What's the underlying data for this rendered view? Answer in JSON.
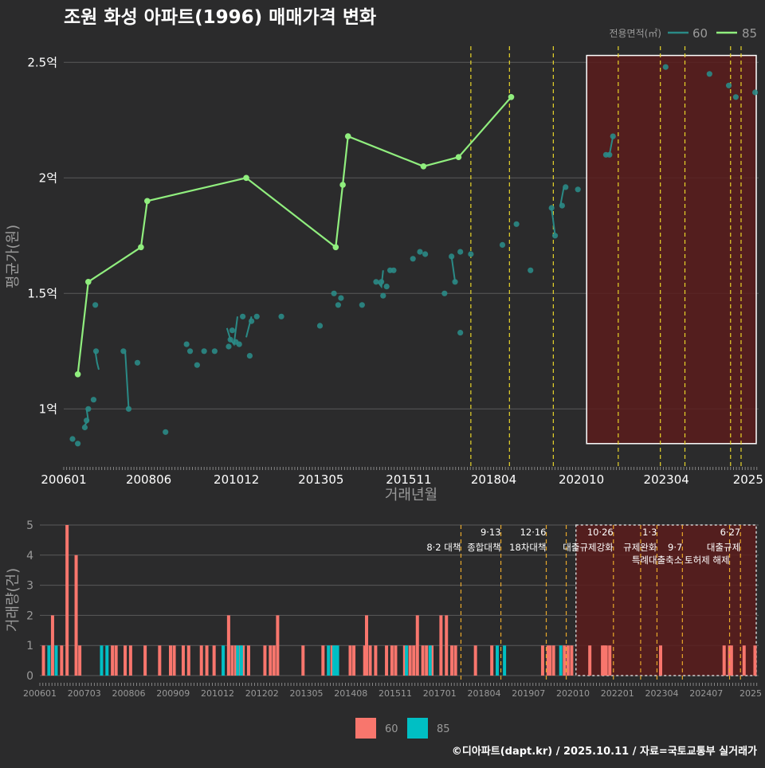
{
  "title": "조원 화성 아파트(1996) 매매가격 변화",
  "footer": "©디아파트(dapt.kr) / 2025.10.11 / 자료=국토교통부 실거래가",
  "colors": {
    "background": "#2b2b2c",
    "grid": "#5a5a5a",
    "series60": "#2a8a86",
    "series85": "#90ee7e",
    "bar60": "#f8766d",
    "bar85": "#00bfc4",
    "policy_line": "#e8d52a",
    "policy_line_bottom": "#e8a82a",
    "highlight_fill": "#5a1c1c",
    "text": "#ffffff",
    "muted": "#9a9a9a"
  },
  "chart_data": [
    {
      "type": "line",
      "title": "조원 화성 아파트(1996) 매매가격 변화",
      "xlabel": "거래년월",
      "ylabel": "평균가(원)",
      "ylim": [
        0.77,
        2.57
      ],
      "xlim": [
        2006.0,
        2025.8
      ],
      "x_ticks": [
        {
          "x": 2006.0,
          "label": "200601"
        },
        {
          "x": 2008.42,
          "label": "200806"
        },
        {
          "x": 2010.92,
          "label": "201012"
        },
        {
          "x": 2013.33,
          "label": "201305"
        },
        {
          "x": 2015.83,
          "label": "201511"
        },
        {
          "x": 2018.25,
          "label": "201804"
        },
        {
          "x": 2020.75,
          "label": "202010"
        },
        {
          "x": 2023.17,
          "label": "202304"
        },
        {
          "x": 2025.5,
          "label": "2025"
        }
      ],
      "y_ticks": [
        {
          "v": 1.0,
          "label": "1억"
        },
        {
          "v": 1.5,
          "label": "1.5억"
        },
        {
          "v": 2.0,
          "label": "2억"
        },
        {
          "v": 2.5,
          "label": "2.5억"
        }
      ],
      "legend": {
        "title": "전용면적(㎡)",
        "position": "top-right",
        "entries": [
          "60",
          "85"
        ]
      },
      "policy_lines": [
        2017.6,
        2018.7,
        2019.95,
        2021.8,
        2023.0,
        2023.7,
        2025.0,
        2025.3
      ],
      "highlight_range": [
        2020.9,
        2025.9,
        0.85,
        2.53
      ],
      "series": [
        {
          "name": "60",
          "line_segments": [
            [
              [
                2006.6,
                0.93
              ],
              [
                2006.7,
                0.95
              ],
              [
                2006.65,
                1.0
              ]
            ],
            [
              [
                2006.9,
                1.25
              ],
              [
                2006.95,
                1.2
              ],
              [
                2007.0,
                1.17
              ]
            ],
            [
              [
                2007.75,
                1.25
              ],
              [
                2007.85,
                1.0
              ]
            ],
            [
              [
                2010.65,
                1.35
              ],
              [
                2010.75,
                1.3
              ],
              [
                2010.85,
                1.28
              ],
              [
                2010.95,
                1.4
              ]
            ],
            [
              [
                2011.2,
                1.31
              ],
              [
                2011.35,
                1.4
              ]
            ],
            [
              [
                2014.95,
                1.55
              ],
              [
                2015.05,
                1.53
              ],
              [
                2015.1,
                1.6
              ]
            ],
            [
              [
                2017.05,
                1.66
              ],
              [
                2017.15,
                1.55
              ]
            ],
            [
              [
                2019.9,
                1.87
              ],
              [
                2020.0,
                1.75
              ]
            ],
            [
              [
                2020.15,
                1.88
              ],
              [
                2020.25,
                1.96
              ]
            ],
            [
              [
                2021.45,
                2.1
              ],
              [
                2021.55,
                2.1
              ],
              [
                2021.65,
                2.18
              ]
            ]
          ],
          "points": [
            [
              2006.25,
              0.87
            ],
            [
              2006.4,
              0.85
            ],
            [
              2006.6,
              0.92
            ],
            [
              2006.65,
              0.95
            ],
            [
              2006.7,
              1.0
            ],
            [
              2006.85,
              1.04
            ],
            [
              2006.9,
              1.45
            ],
            [
              2006.92,
              1.25
            ],
            [
              2007.7,
              1.25
            ],
            [
              2007.85,
              1.0
            ],
            [
              2008.1,
              1.2
            ],
            [
              2008.9,
              0.9
            ],
            [
              2009.5,
              1.28
            ],
            [
              2009.6,
              1.25
            ],
            [
              2009.8,
              1.19
            ],
            [
              2010.0,
              1.25
            ],
            [
              2010.3,
              1.25
            ],
            [
              2010.7,
              1.27
            ],
            [
              2010.75,
              1.3
            ],
            [
              2010.8,
              1.34
            ],
            [
              2010.9,
              1.29
            ],
            [
              2011.0,
              1.28
            ],
            [
              2011.1,
              1.4
            ],
            [
              2011.3,
              1.23
            ],
            [
              2011.35,
              1.38
            ],
            [
              2011.5,
              1.4
            ],
            [
              2012.2,
              1.4
            ],
            [
              2013.3,
              1.36
            ],
            [
              2013.7,
              1.5
            ],
            [
              2013.82,
              1.45
            ],
            [
              2013.9,
              1.48
            ],
            [
              2014.5,
              1.45
            ],
            [
              2014.9,
              1.55
            ],
            [
              2015.05,
              1.55
            ],
            [
              2015.1,
              1.49
            ],
            [
              2015.2,
              1.53
            ],
            [
              2015.3,
              1.6
            ],
            [
              2015.4,
              1.6
            ],
            [
              2015.95,
              1.65
            ],
            [
              2016.15,
              1.68
            ],
            [
              2016.3,
              1.67
            ],
            [
              2016.85,
              1.5
            ],
            [
              2017.05,
              1.66
            ],
            [
              2017.15,
              1.55
            ],
            [
              2017.3,
              1.33
            ],
            [
              2017.3,
              1.68
            ],
            [
              2017.6,
              1.67
            ],
            [
              2018.5,
              1.71
            ],
            [
              2018.9,
              1.8
            ],
            [
              2019.3,
              1.6
            ],
            [
              2019.9,
              1.87
            ],
            [
              2020.0,
              1.75
            ],
            [
              2020.2,
              1.88
            ],
            [
              2020.3,
              1.96
            ],
            [
              2020.65,
              1.95
            ],
            [
              2021.45,
              2.1
            ],
            [
              2021.55,
              2.1
            ],
            [
              2021.65,
              2.18
            ],
            [
              2023.15,
              2.48
            ],
            [
              2024.4,
              2.45
            ],
            [
              2024.95,
              2.4
            ],
            [
              2025.15,
              2.35
            ],
            [
              2025.7,
              2.37
            ]
          ]
        },
        {
          "name": "85",
          "points": [
            [
              2006.4,
              1.15
            ],
            [
              2006.7,
              1.55
            ],
            [
              2008.2,
              1.7
            ],
            [
              2008.38,
              1.9
            ],
            [
              2011.2,
              2.0
            ],
            [
              2013.75,
              1.7
            ],
            [
              2013.95,
              1.97
            ],
            [
              2014.1,
              2.18
            ],
            [
              2016.25,
              2.05
            ],
            [
              2017.25,
              2.09
            ],
            [
              2018.75,
              2.35
            ]
          ]
        }
      ]
    },
    {
      "type": "bar",
      "xlabel": "",
      "ylabel": "거래량(건)",
      "ylim": [
        0,
        5
      ],
      "y_ticks": [
        0,
        1,
        2,
        3,
        4,
        5
      ],
      "x_ticks": [
        "200601",
        "200703",
        "200806",
        "200909",
        "201012",
        "201202",
        "201305",
        "201408",
        "201511",
        "201701",
        "201804",
        "201907",
        "202010",
        "202201",
        "202304",
        "202407",
        "2025"
      ],
      "legend": {
        "position": "bottom",
        "entries": [
          "60",
          "85"
        ]
      },
      "policy_lines": [
        2017.6,
        2018.7,
        2019.95,
        2020.5,
        2021.8,
        2022.55,
        2023.0,
        2023.7,
        2025.0,
        2025.3
      ],
      "annotations": [
        {
          "x": 2017.6,
          "row": 1,
          "label": "8·2 대책"
        },
        {
          "x": 2018.7,
          "row": 0,
          "label": "9·13"
        },
        {
          "x": 2018.7,
          "row": 1,
          "label": "종합대책"
        },
        {
          "x": 2019.95,
          "row": 0,
          "label": "12·16"
        },
        {
          "x": 2019.95,
          "row": 1,
          "label": "18차대책"
        },
        {
          "x": 2021.8,
          "row": 0,
          "label": "10·26"
        },
        {
          "x": 2021.8,
          "row": 1,
          "label": "대출규제강화"
        },
        {
          "x": 2023.0,
          "row": 0,
          "label": "1·3"
        },
        {
          "x": 2023.0,
          "row": 1,
          "label": "규제완화"
        },
        {
          "x": 2023.7,
          "row": 1,
          "label": "9·7"
        },
        {
          "x": 2023.7,
          "row": 2,
          "label": "특례대출축소"
        },
        {
          "x": 2025.0,
          "row": 2,
          "label": "토허제 해제"
        },
        {
          "x": 2025.3,
          "row": 0,
          "label": "6·27"
        },
        {
          "x": 2025.3,
          "row": 1,
          "label": "대출규제"
        }
      ],
      "series": [
        {
          "name": "60",
          "points": [
            [
              2006.1,
              1
            ],
            [
              2006.35,
              2
            ],
            [
              2006.6,
              1
            ],
            [
              2006.75,
              5
            ],
            [
              2007.0,
              4
            ],
            [
              2007.1,
              1
            ],
            [
              2008.0,
              1
            ],
            [
              2008.1,
              1
            ],
            [
              2008.35,
              1
            ],
            [
              2008.5,
              1
            ],
            [
              2008.9,
              1
            ],
            [
              2009.3,
              1
            ],
            [
              2009.6,
              1
            ],
            [
              2009.7,
              1
            ],
            [
              2009.95,
              1
            ],
            [
              2010.1,
              1
            ],
            [
              2010.45,
              1
            ],
            [
              2010.6,
              1
            ],
            [
              2010.8,
              1
            ],
            [
              2011.2,
              2
            ],
            [
              2011.3,
              1
            ],
            [
              2011.4,
              1
            ],
            [
              2011.5,
              1
            ],
            [
              2011.6,
              1
            ],
            [
              2011.75,
              1
            ],
            [
              2012.2,
              1
            ],
            [
              2012.35,
              1
            ],
            [
              2012.45,
              1
            ],
            [
              2012.55,
              2
            ],
            [
              2013.25,
              1
            ],
            [
              2013.8,
              1
            ],
            [
              2014.05,
              1
            ],
            [
              2014.55,
              1
            ],
            [
              2014.65,
              1
            ],
            [
              2014.95,
              1
            ],
            [
              2015.0,
              2
            ],
            [
              2015.1,
              1
            ],
            [
              2015.25,
              1
            ],
            [
              2015.55,
              1
            ],
            [
              2015.7,
              1
            ],
            [
              2015.8,
              1
            ],
            [
              2016.05,
              1
            ],
            [
              2016.2,
              1
            ],
            [
              2016.3,
              1
            ],
            [
              2016.4,
              2
            ],
            [
              2016.55,
              1
            ],
            [
              2016.65,
              1
            ],
            [
              2016.8,
              1
            ],
            [
              2017.05,
              2
            ],
            [
              2017.2,
              2
            ],
            [
              2017.35,
              1
            ],
            [
              2017.45,
              1
            ],
            [
              2018.0,
              1
            ],
            [
              2018.45,
              1
            ],
            [
              2019.85,
              1
            ],
            [
              2020.0,
              1
            ],
            [
              2020.05,
              1
            ],
            [
              2020.15,
              1
            ],
            [
              2020.45,
              1
            ],
            [
              2020.55,
              1
            ],
            [
              2020.65,
              1
            ],
            [
              2021.15,
              1
            ],
            [
              2021.5,
              1
            ],
            [
              2021.55,
              1
            ],
            [
              2021.6,
              1
            ],
            [
              2021.7,
              1
            ],
            [
              2023.1,
              1
            ],
            [
              2024.85,
              1
            ],
            [
              2025.0,
              1
            ],
            [
              2025.05,
              1
            ],
            [
              2025.4,
              1
            ],
            [
              2025.7,
              1
            ]
          ]
        },
        {
          "name": "85",
          "points": [
            [
              2006.25,
              1
            ],
            [
              2006.45,
              1
            ],
            [
              2007.7,
              1
            ],
            [
              2007.85,
              1
            ],
            [
              2011.05,
              1
            ],
            [
              2011.45,
              1
            ],
            [
              2011.55,
              1
            ],
            [
              2013.95,
              1
            ],
            [
              2014.1,
              1
            ],
            [
              2014.15,
              1
            ],
            [
              2014.2,
              1
            ],
            [
              2016.1,
              1
            ],
            [
              2016.75,
              1
            ],
            [
              2018.6,
              1
            ],
            [
              2018.8,
              1
            ],
            [
              2020.35,
              1
            ]
          ]
        }
      ]
    }
  ]
}
